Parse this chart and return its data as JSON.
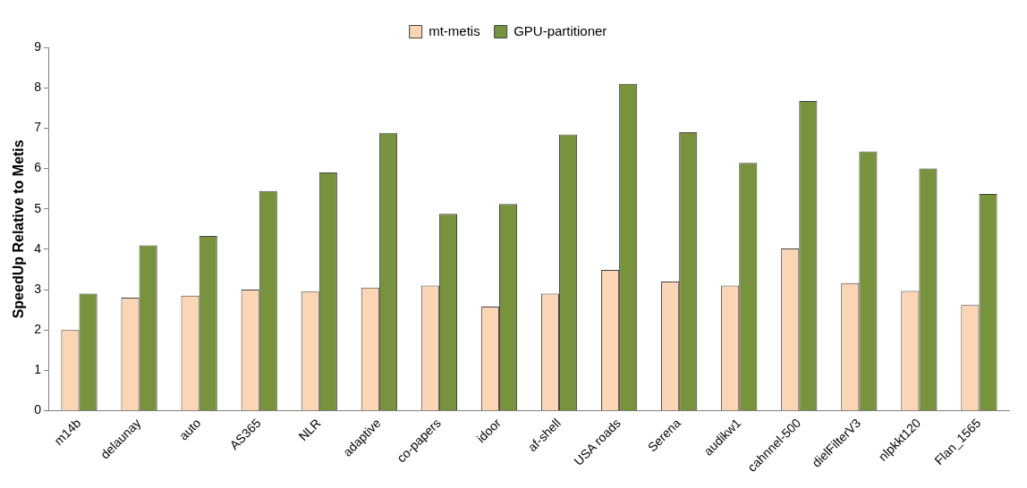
{
  "chart_data": {
    "type": "bar",
    "ylabel": "SpeedUp Relative to Metis",
    "categories": [
      "m14b",
      "delaunay",
      "auto",
      "AS365",
      "NLR",
      "adaptive",
      "co-papers",
      "idoor",
      "af-shell",
      "USA roads",
      "Serena",
      "audikw1",
      "cahnnel-500",
      "dielFilterV3",
      "nlpkkt120",
      "Flan_1565"
    ],
    "series": [
      {
        "name": "mt-metis",
        "color": "#fcd5b5",
        "values": [
          2.0,
          2.8,
          2.85,
          3.0,
          2.95,
          3.05,
          3.1,
          2.58,
          2.9,
          3.49,
          3.2,
          3.1,
          4.02,
          3.16,
          2.97,
          2.62
        ]
      },
      {
        "name": "GPU-partitioner",
        "color": "#77933c",
        "values": [
          2.9,
          4.1,
          4.33,
          5.44,
          5.9,
          6.88,
          4.88,
          5.12,
          6.84,
          8.1,
          6.9,
          6.14,
          7.67,
          6.42,
          6.0,
          5.37
        ]
      }
    ],
    "ylim": [
      0,
      9
    ],
    "yticks": [
      0,
      1,
      2,
      3,
      4,
      5,
      6,
      7,
      8,
      9
    ],
    "grid": false,
    "legend": "top"
  }
}
